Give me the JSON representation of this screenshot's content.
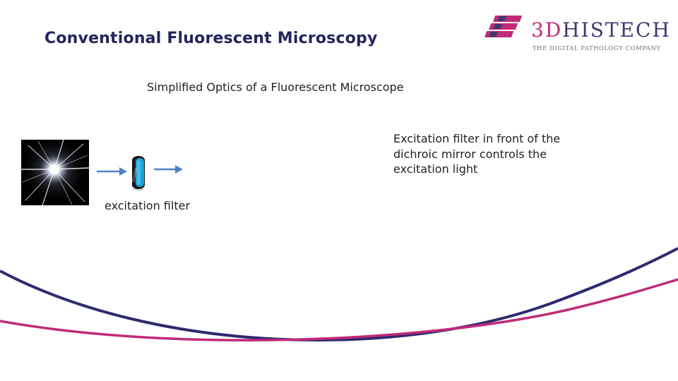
{
  "slide": {
    "title": "Conventional Fluorescent Microscopy",
    "subtitle": "Simplified Optics of a Fluorescent Microscope",
    "description_lines": [
      "Excitation filter in front of the",
      "dichroic mirror controls the",
      "excitation light"
    ],
    "filter_caption": "excitation filter"
  },
  "logo": {
    "brand_prefix": "3D",
    "brand_suffix": "HISTECH",
    "tagline": "THE DIGITAL PATHOLOGY COMPANY"
  },
  "diagram": {
    "light_source_icon": "light-burst",
    "filter_icon": "optical-filter",
    "arrow_icon": "arrow-right",
    "arrow_color": "#4f84c4"
  },
  "colors": {
    "title": "#24235e",
    "swoosh_navy": "#2d2a6e",
    "swoosh_magenta": "#c02a78"
  }
}
